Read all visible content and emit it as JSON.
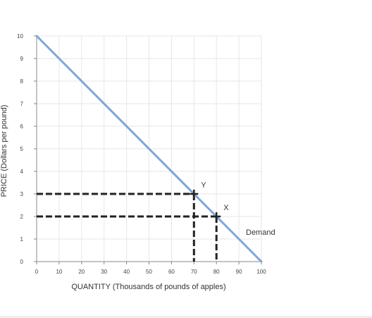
{
  "chart_data": {
    "type": "line",
    "xlabel": "QUANTITY (Thousands of pounds of apples)",
    "ylabel": "PRICE (Dollars per pound)",
    "xlim": [
      0,
      100
    ],
    "ylim": [
      0,
      10
    ],
    "x_ticks": [
      0,
      10,
      20,
      30,
      40,
      50,
      60,
      70,
      80,
      90,
      100
    ],
    "y_ticks": [
      0,
      1,
      2,
      3,
      4,
      5,
      6,
      7,
      8,
      9,
      10
    ],
    "grid": true,
    "series": [
      {
        "name": "Demand",
        "x": [
          0,
          100
        ],
        "y": [
          10,
          0
        ],
        "color": "#7ea6d6"
      }
    ],
    "points": [
      {
        "label": "Y",
        "x": 70,
        "y": 3
      },
      {
        "label": "X",
        "x": 80,
        "y": 2
      }
    ],
    "guide_color": "#222222"
  }
}
